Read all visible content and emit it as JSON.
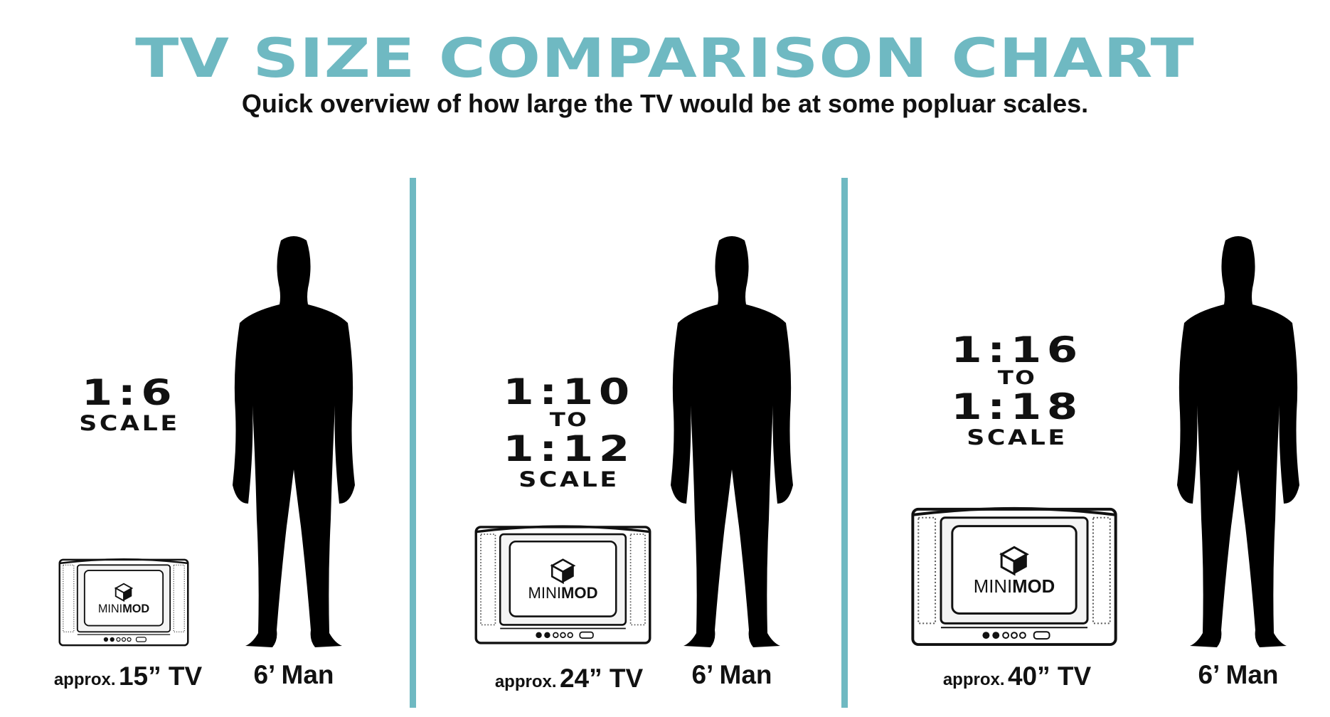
{
  "header": {
    "title": "TV SIZE COMPARISON CHART",
    "subtitle": "Quick overview of how large the TV would be at some popluar scales."
  },
  "panels": [
    {
      "scale_lines": [
        "1:6"
      ],
      "scale_word": "SCALE",
      "tv_caption_prefix": "approx.",
      "tv_caption_size": "15” TV",
      "man_caption": "6’ Man",
      "tv_brand_light": "MINI",
      "tv_brand_bold": "MOD",
      "tv_inches": 15
    },
    {
      "scale_lines": [
        "1:10",
        "TO",
        "1:12"
      ],
      "scale_word": "SCALE",
      "tv_caption_prefix": "approx.",
      "tv_caption_size": "24” TV",
      "man_caption": "6’ Man",
      "tv_brand_light": "MINI",
      "tv_brand_bold": "MOD",
      "tv_inches": 24
    },
    {
      "scale_lines": [
        "1:16",
        "TO",
        "1:18"
      ],
      "scale_word": "SCALE",
      "tv_caption_prefix": "approx.",
      "tv_caption_size": "40” TV",
      "man_caption": "6’ Man",
      "tv_brand_light": "MINI",
      "tv_brand_bold": "MOD",
      "tv_inches": 40
    }
  ],
  "colors": {
    "accent": "#6fb9c2",
    "text": "#111111",
    "silhouette": "#000000"
  }
}
